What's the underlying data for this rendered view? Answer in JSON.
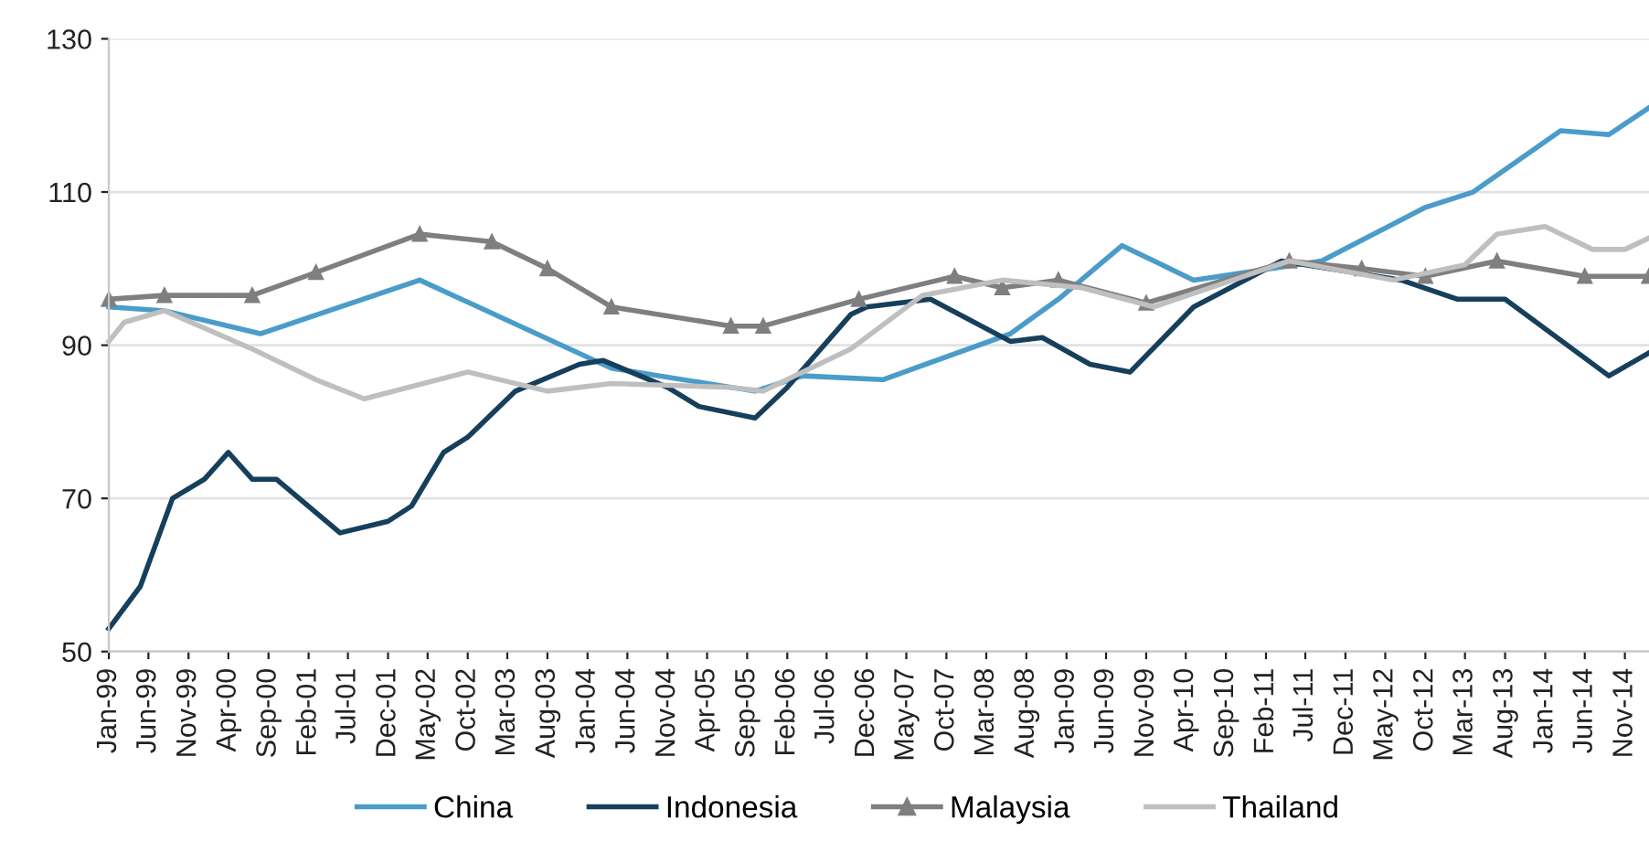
{
  "chart_data": {
    "type": "line",
    "xlim": [
      "1999-01",
      "2015-02"
    ],
    "ylim": [
      50,
      130
    ],
    "yticks": [
      50,
      70,
      90,
      110,
      130
    ],
    "xticks": [
      {
        "value": "1999-01",
        "label": "Jan-99"
      },
      {
        "value": "1999-06",
        "label": "Jun-99"
      },
      {
        "value": "1999-11",
        "label": "Nov-99"
      },
      {
        "value": "2000-04",
        "label": "Apr-00"
      },
      {
        "value": "2000-09",
        "label": "Sep-00"
      },
      {
        "value": "2001-02",
        "label": "Feb-01"
      },
      {
        "value": "2001-07",
        "label": "Jul-01"
      },
      {
        "value": "2001-12",
        "label": "Dec-01"
      },
      {
        "value": "2002-05",
        "label": "May-02"
      },
      {
        "value": "2002-10",
        "label": "Oct-02"
      },
      {
        "value": "2003-03",
        "label": "Mar-03"
      },
      {
        "value": "2003-08",
        "label": "Aug-03"
      },
      {
        "value": "2004-01",
        "label": "Jan-04"
      },
      {
        "value": "2004-06",
        "label": "Jun-04"
      },
      {
        "value": "2004-11",
        "label": "Nov-04"
      },
      {
        "value": "2005-04",
        "label": "Apr-05"
      },
      {
        "value": "2005-09",
        "label": "Sep-05"
      },
      {
        "value": "2006-02",
        "label": "Feb-06"
      },
      {
        "value": "2006-07",
        "label": "Jul-06"
      },
      {
        "value": "2006-12",
        "label": "Dec-06"
      },
      {
        "value": "2007-05",
        "label": "May-07"
      },
      {
        "value": "2007-10",
        "label": "Oct-07"
      },
      {
        "value": "2008-03",
        "label": "Mar-08"
      },
      {
        "value": "2008-08",
        "label": "Aug-08"
      },
      {
        "value": "2009-01",
        "label": "Jan-09"
      },
      {
        "value": "2009-06",
        "label": "Jun-09"
      },
      {
        "value": "2009-11",
        "label": "Nov-09"
      },
      {
        "value": "2010-04",
        "label": "Apr-10"
      },
      {
        "value": "2010-09",
        "label": "Sep-10"
      },
      {
        "value": "2011-02",
        "label": "Feb-11"
      },
      {
        "value": "2011-07",
        "label": "Jul-11"
      },
      {
        "value": "2011-12",
        "label": "Dec-11"
      },
      {
        "value": "2012-05",
        "label": "May-12"
      },
      {
        "value": "2012-10",
        "label": "Oct-12"
      },
      {
        "value": "2013-03",
        "label": "Mar-13"
      },
      {
        "value": "2013-08",
        "label": "Aug-13"
      },
      {
        "value": "2014-01",
        "label": "Jan-14"
      },
      {
        "value": "2014-06",
        "label": "Jun-14"
      },
      {
        "value": "2014-11",
        "label": "Nov-14"
      }
    ],
    "grid": "y",
    "legend": "bottom",
    "series": [
      {
        "name": "China",
        "color": "#4a9cc9",
        "x": [
          "1999-01",
          "1999-08",
          "2000-08",
          "2002-04",
          "2004-04",
          "2005-10",
          "2006-04",
          "2007-02",
          "2008-06",
          "2008-12",
          "2009-08",
          "2009-12",
          "2010-05",
          "2011-09",
          "2012-10",
          "2013-04",
          "2014-03",
          "2014-09",
          "2015-02"
        ],
        "values": [
          95,
          94.5,
          91.5,
          98.5,
          87,
          84,
          86,
          85.5,
          91.5,
          96,
          103,
          101,
          98.5,
          101,
          108,
          110,
          118,
          117.5,
          121
        ]
      },
      {
        "name": "Indonesia",
        "color": "#163f5c",
        "x": [
          "1999-01",
          "1999-05",
          "1999-09",
          "2000-01",
          "2000-04",
          "2000-07",
          "2000-10",
          "2001-06",
          "2001-12",
          "2002-03",
          "2002-07",
          "2002-10",
          "2003-04",
          "2003-12",
          "2004-03",
          "2004-11",
          "2005-03",
          "2005-10",
          "2006-02",
          "2006-10",
          "2006-12",
          "2007-08",
          "2008-06",
          "2008-10",
          "2009-04",
          "2009-09",
          "2010-05",
          "2011-04",
          "2012-07",
          "2013-02",
          "2013-08",
          "2014-09",
          "2015-02"
        ],
        "values": [
          53,
          58.5,
          70,
          72.5,
          76,
          72.5,
          72.5,
          65.5,
          67,
          69,
          76,
          78,
          84,
          87.5,
          88,
          84.5,
          82,
          80.5,
          84.5,
          94,
          95,
          96,
          90.5,
          91,
          87.5,
          86.5,
          95,
          101,
          98.5,
          96,
          96,
          86,
          89
        ]
      },
      {
        "name": "Malaysia",
        "color": "#7f7f7f",
        "marker": "triangle",
        "x": [
          "1999-01",
          "1999-08",
          "2000-07",
          "2001-03",
          "2002-04",
          "2003-01",
          "2003-08",
          "2004-04",
          "2005-07",
          "2005-11",
          "2006-11",
          "2007-11",
          "2008-05",
          "2008-12",
          "2009-11",
          "2011-05",
          "2012-02",
          "2012-10",
          "2013-07",
          "2014-06",
          "2015-02"
        ],
        "values": [
          96,
          96.5,
          96.5,
          99.5,
          104.5,
          103.5,
          100,
          95,
          92.5,
          92.5,
          96,
          99,
          97.5,
          98.5,
          95.5,
          101,
          100,
          99,
          101,
          99,
          99
        ]
      },
      {
        "name": "Thailand",
        "color": "#bfbfbf",
        "x": [
          "1999-01",
          "1999-03",
          "1999-08",
          "2000-07",
          "2001-03",
          "2001-09",
          "2002-10",
          "2003-08",
          "2004-04",
          "2005-07",
          "2005-11",
          "2006-10",
          "2007-07",
          "2008-05",
          "2009-03",
          "2009-12",
          "2011-05",
          "2012-06",
          "2013-03",
          "2013-07",
          "2014-01",
          "2014-07",
          "2014-11",
          "2015-02"
        ],
        "values": [
          90.5,
          93,
          94.5,
          89.5,
          85.5,
          83,
          86.5,
          84,
          85,
          84.5,
          84,
          89.5,
          96.5,
          98.5,
          97.5,
          95,
          101,
          98.5,
          100.5,
          104.5,
          105.5,
          102.5,
          102.5,
          104
        ]
      }
    ]
  }
}
